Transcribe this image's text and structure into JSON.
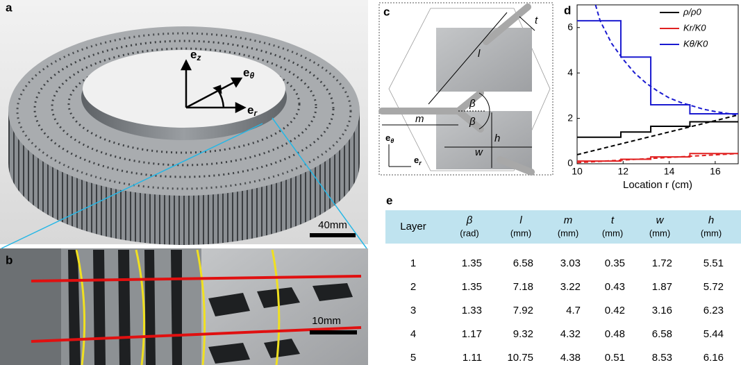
{
  "panel_labels": [
    "a",
    "b",
    "c",
    "d",
    "e"
  ],
  "photo_a": {
    "axes": [
      {
        "base": "e",
        "sub": "z"
      },
      {
        "base": "e",
        "sub": "θ"
      },
      {
        "base": "e",
        "sub": "r"
      }
    ],
    "scale_bar": "40mm"
  },
  "photo_b": {
    "scale_bar": "10mm"
  },
  "diagram_c": {
    "labels": {
      "l": "l",
      "t": "t",
      "beta_upper": "β",
      "beta_lower": "β",
      "m": "m",
      "h": "h",
      "w": "w"
    },
    "axes": [
      {
        "base": "e",
        "sub": "θ"
      },
      {
        "base": "e",
        "sub": "r"
      }
    ]
  },
  "chart_data": {
    "type": "line",
    "x_label": "Location r  (cm)",
    "xlim": [
      10,
      17
    ],
    "xticks": [
      10,
      12,
      14,
      16
    ],
    "ylim": [
      0,
      7
    ],
    "yticks": [
      0,
      2,
      4,
      6
    ],
    "legend": "upper right",
    "series": [
      {
        "name": "ρ/ρ0",
        "color": "#000000",
        "dashed": false,
        "x": [
          10,
          11.9,
          11.9,
          13.2,
          13.2,
          14.9,
          14.9,
          17
        ],
        "values": [
          1.17,
          1.17,
          1.4,
          1.4,
          1.65,
          1.65,
          1.85,
          1.85
        ]
      },
      {
        "name": "Kr/K0",
        "color": "#e02020",
        "dashed": false,
        "x": [
          10,
          11.9,
          11.9,
          13.2,
          13.2,
          14.9,
          14.9,
          17
        ],
        "values": [
          0.12,
          0.12,
          0.2,
          0.2,
          0.3,
          0.3,
          0.45,
          0.45
        ]
      },
      {
        "name": "Kθ/K0",
        "color": "#1a1ad0",
        "dashed": false,
        "x": [
          10,
          11.9,
          11.9,
          13.2,
          13.2,
          14.9,
          14.9,
          17
        ],
        "values": [
          6.3,
          6.3,
          4.7,
          4.7,
          2.6,
          2.6,
          2.2,
          2.2
        ]
      },
      {
        "color": "#000000",
        "dashed": true,
        "x": [
          10,
          17
        ],
        "values": [
          0.4,
          2.15
        ]
      },
      {
        "color": "#e02020",
        "dashed": true,
        "x": [
          10,
          17
        ],
        "values": [
          0.05,
          0.45
        ]
      },
      {
        "color": "#1a1ad0",
        "dashed": true,
        "x": [
          10.8,
          11,
          11.5,
          12,
          12.5,
          13,
          13.5,
          14,
          14.5,
          15,
          15.5,
          16,
          16.5,
          17
        ],
        "values": [
          7,
          6.3,
          5.3,
          4.6,
          4.0,
          3.55,
          3.2,
          2.9,
          2.7,
          2.55,
          2.4,
          2.3,
          2.22,
          2.15
        ]
      }
    ]
  },
  "table": {
    "columns": [
      {
        "symbol": "Layer"
      },
      {
        "symbol": "β",
        "unit": "(rad)"
      },
      {
        "symbol": "l",
        "unit": "(mm)"
      },
      {
        "symbol": "m",
        "unit": "(mm)"
      },
      {
        "symbol": "t",
        "unit": "(mm)"
      },
      {
        "symbol": "w",
        "unit": "(mm)"
      },
      {
        "symbol": "h",
        "unit": "(mm)"
      }
    ],
    "rows": [
      [
        1,
        1.35,
        6.58,
        3.03,
        0.35,
        1.72,
        5.51
      ],
      [
        2,
        1.35,
        7.18,
        3.22,
        0.43,
        1.87,
        5.72
      ],
      [
        3,
        1.33,
        7.92,
        4.7,
        0.42,
        3.16,
        6.23
      ],
      [
        4,
        1.17,
        9.32,
        4.32,
        0.48,
        6.58,
        5.44
      ],
      [
        5,
        1.11,
        10.75,
        4.38,
        0.51,
        8.53,
        6.16
      ]
    ]
  }
}
